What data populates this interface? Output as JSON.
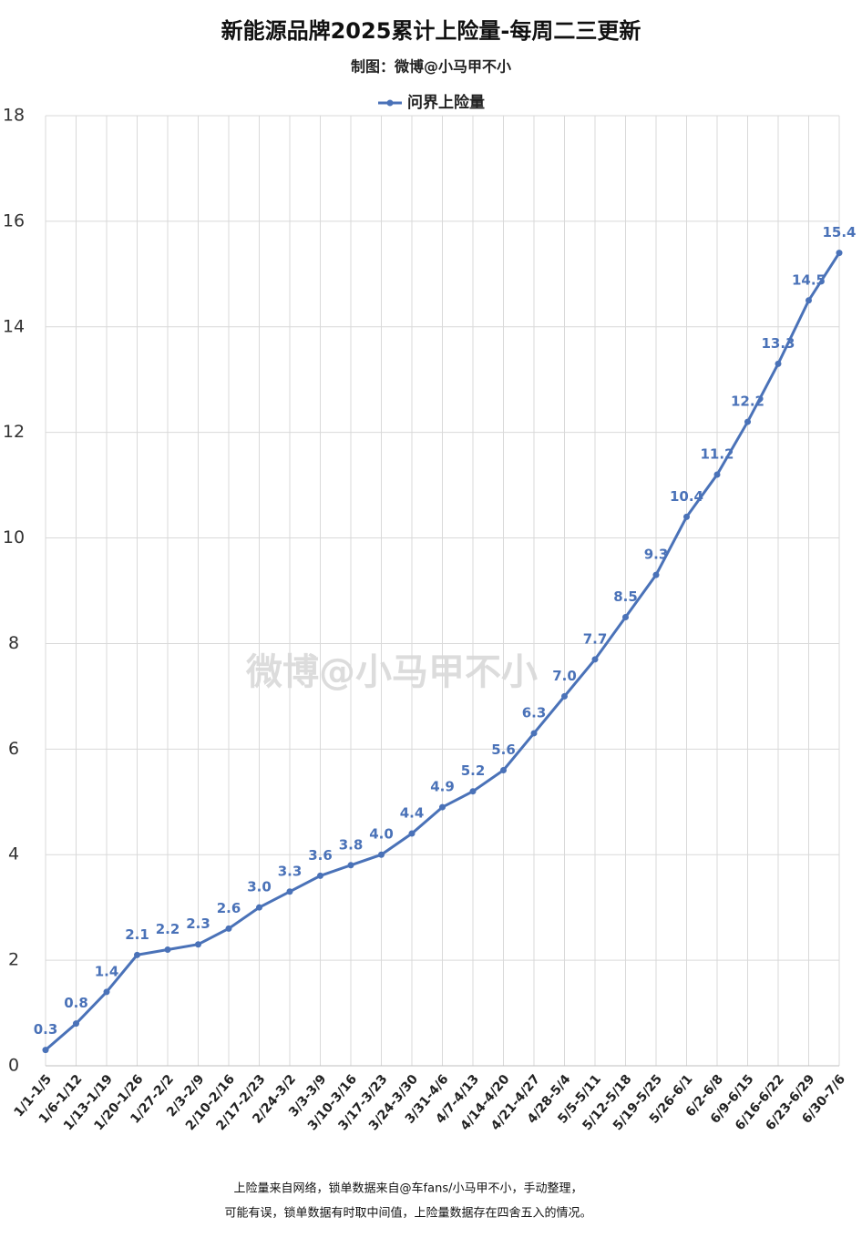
{
  "chart_data": {
    "type": "line",
    "title": "新能源品牌2025累计上险量-每周二三更新",
    "subtitle": "制图：微博@小马甲不小",
    "watermark": "微博@小马甲不小",
    "notes": [
      "上险量来自网络，锁单数据来自@车fans/小马甲不小，手动整理，",
      "可能有误，锁单数据有时取中间值，上险量数据存在四舍五入的情况。"
    ],
    "categories": [
      "1/1-1/5",
      "1/6-1/12",
      "1/13-1/19",
      "1/20-1/26",
      "1/27-2/2",
      "2/3-2/9",
      "2/10-2/16",
      "2/17-2/23",
      "2/24-3/2",
      "3/3-3/9",
      "3/10-3/16",
      "3/17-3/23",
      "3/24-3/30",
      "3/31-4/6",
      "4/7-4/13",
      "4/14-4/20",
      "4/21-4/27",
      "4/28-5/4",
      "5/5-5/11",
      "5/12-5/18",
      "5/19-5/25",
      "5/26-6/1",
      "6/2-6/8",
      "6/9-6/15",
      "6/16-6/22",
      "6/23-6/29",
      "6/30-7/6"
    ],
    "series": [
      {
        "name": "问界上险量",
        "color": "#4a72b8",
        "values": [
          0.3,
          0.8,
          1.4,
          2.1,
          2.2,
          2.3,
          2.6,
          3.0,
          3.3,
          3.6,
          3.8,
          4.0,
          4.4,
          4.9,
          5.2,
          5.6,
          6.3,
          7.0,
          7.7,
          8.5,
          9.3,
          10.4,
          11.2,
          12.2,
          13.3,
          14.5,
          15.4
        ],
        "value_labels": [
          "0.3",
          "0.8",
          "1.4",
          "2.1",
          "2.2",
          "2.3",
          "2.6",
          "3.0",
          "3.3",
          "3.6",
          "3.8",
          "4.0",
          "4.4",
          "4.9",
          "5.2",
          "5.6",
          "6.3",
          "7.0",
          "7.7",
          "8.5",
          "9.3",
          "10.4",
          "11.2",
          "12.2",
          "13.3",
          "14.5",
          "15.4"
        ]
      }
    ],
    "ylim": [
      0,
      18
    ],
    "yticks": [
      0,
      2,
      4,
      6,
      8,
      10,
      12,
      14,
      16,
      18
    ],
    "grid": true,
    "legend": "top"
  }
}
